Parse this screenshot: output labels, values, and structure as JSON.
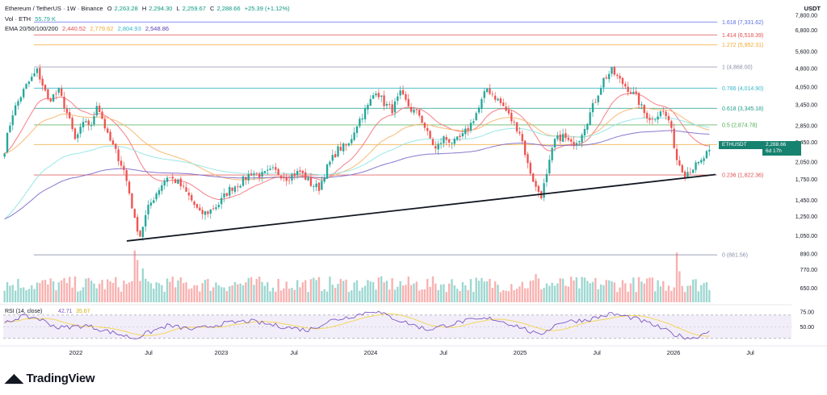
{
  "header": {
    "symbol": "Ethereum / TetherUS · 1W · Binance",
    "open_label": "O",
    "open": "2,263.28",
    "high_label": "H",
    "high": "2,294.30",
    "low_label": "L",
    "low": "2,259.67",
    "close_label": "C",
    "close": "2,288.66",
    "change": "+25.39 (+1.12%)",
    "vol_label": "Vol · ETH",
    "vol_value": "55.79 K",
    "ema_label": "EMA 20/50/100/200",
    "ema_values": [
      "2,440.52",
      "2,779.62",
      "2,804.93",
      "2,548.86"
    ]
  },
  "axis_unit": "USDT",
  "brand": "TradingView",
  "price_tag": {
    "symbol": "ETHUSDT",
    "price": "2,288.66",
    "countdown": "6d 17h"
  },
  "colors": {
    "up": "#26a69a",
    "down": "#ef5350",
    "ema20": "#f4707a",
    "ema50": "#f7b267",
    "ema100": "#8fe3e4",
    "ema200": "#7b68c9",
    "rsi": "#7e57c2",
    "rsi_ma": "#f3d65b",
    "trendline": "#131722"
  },
  "chart_data": {
    "type": "candlestick",
    "interval": "1W",
    "x_tick_labels": [
      "2022",
      "Jul",
      "2023",
      "Jul",
      "2024",
      "Jul",
      "2025",
      "Jul",
      "2026",
      "Jul"
    ],
    "x_ticks_frac": [
      0.09,
      0.18,
      0.27,
      0.36,
      0.455,
      0.545,
      0.64,
      0.735,
      0.83,
      0.925
    ],
    "y_scale": "log",
    "y_ticks": [
      650,
      770,
      890,
      1050,
      1250,
      1450,
      1750,
      2050,
      2450,
      2850,
      3450,
      4050,
      4800,
      5600,
      6800,
      7800
    ],
    "y_range": [
      560,
      8200
    ],
    "fib_levels": [
      {
        "label": "1.618",
        "value": 7331.62,
        "color": "#5b6ee1"
      },
      {
        "label": "1.414",
        "value": 6518.39,
        "color": "#e04e4e"
      },
      {
        "label": "1.272",
        "value": 5952.31,
        "color": "#f0a830"
      },
      {
        "label": "1",
        "value": 4868.0,
        "color": "#8a8fa8"
      },
      {
        "label": "0.786",
        "value": 4014.9,
        "color": "#35b7c9"
      },
      {
        "label": "0.618",
        "value": 3345.18,
        "color": "#1f9e8a"
      },
      {
        "label": "0.5",
        "value": 2874.78,
        "color": "#4caf50"
      },
      {
        "label": "0.382",
        "value": 2404.39,
        "color": "#f0a830"
      },
      {
        "label": "0.236",
        "value": 1822.36,
        "color": "#e04e4e"
      },
      {
        "label": "0",
        "value": 881.56,
        "color": "#8a8fa8"
      }
    ],
    "anchors": [
      [
        0,
        2300
      ],
      [
        3,
        3200
      ],
      [
        8,
        4100
      ],
      [
        12,
        4700
      ],
      [
        16,
        3600
      ],
      [
        20,
        3900
      ],
      [
        26,
        2500
      ],
      [
        30,
        3000
      ],
      [
        32,
        2800
      ],
      [
        34,
        3500
      ],
      [
        38,
        2600
      ],
      [
        44,
        1900
      ],
      [
        48,
        1200
      ],
      [
        50,
        1050
      ],
      [
        53,
        1350
      ],
      [
        56,
        1550
      ],
      [
        60,
        1800
      ],
      [
        64,
        1700
      ],
      [
        68,
        1500
      ],
      [
        72,
        1280
      ],
      [
        75,
        1300
      ],
      [
        79,
        1400
      ],
      [
        83,
        1600
      ],
      [
        87,
        1700
      ],
      [
        91,
        1860
      ],
      [
        95,
        1820
      ],
      [
        99,
        1900
      ],
      [
        104,
        1780
      ],
      [
        109,
        1880
      ],
      [
        113,
        1680
      ],
      [
        116,
        1620
      ],
      [
        119,
        1950
      ],
      [
        123,
        2300
      ],
      [
        127,
        2400
      ],
      [
        130,
        2900
      ],
      [
        134,
        3400
      ],
      [
        137,
        3950
      ],
      [
        140,
        3500
      ],
      [
        143,
        3300
      ],
      [
        146,
        3800
      ],
      [
        150,
        3300
      ],
      [
        153,
        3150
      ],
      [
        156,
        2650
      ],
      [
        159,
        2300
      ],
      [
        162,
        2550
      ],
      [
        166,
        2450
      ],
      [
        169,
        2600
      ],
      [
        172,
        2900
      ],
      [
        175,
        3350
      ],
      [
        178,
        4000
      ],
      [
        181,
        3700
      ],
      [
        184,
        3400
      ],
      [
        187,
        3000
      ],
      [
        190,
        2700
      ],
      [
        193,
        2000
      ],
      [
        196,
        1620
      ],
      [
        198,
        1520
      ],
      [
        200,
        1800
      ],
      [
        203,
        2500
      ],
      [
        206,
        2600
      ],
      [
        209,
        2400
      ],
      [
        212,
        2550
      ],
      [
        215,
        3000
      ],
      [
        218,
        3600
      ],
      [
        221,
        4350
      ],
      [
        224,
        4700
      ],
      [
        227,
        4300
      ],
      [
        230,
        4000
      ],
      [
        233,
        3700
      ],
      [
        236,
        3200
      ],
      [
        239,
        3000
      ],
      [
        242,
        3300
      ],
      [
        245,
        3000
      ],
      [
        248,
        2100
      ],
      [
        251,
        1850
      ],
      [
        254,
        1950
      ],
      [
        257,
        2050
      ],
      [
        260,
        2290
      ]
    ],
    "volume_scale": [
      0,
      100
    ],
    "volume_spikes": {
      "48": 92,
      "49": 75,
      "51": 60,
      "248": 88,
      "249": 55,
      "196": 50
    },
    "rsi": {
      "label": "RSI (14, close)",
      "value": "42.71",
      "ma_value": "35.67",
      "ticks": [
        75,
        50
      ],
      "bands": [
        70,
        30
      ],
      "anchors": [
        [
          0,
          55
        ],
        [
          6,
          68
        ],
        [
          12,
          65
        ],
        [
          20,
          48
        ],
        [
          30,
          52
        ],
        [
          40,
          40
        ],
        [
          48,
          30
        ],
        [
          52,
          38
        ],
        [
          60,
          52
        ],
        [
          70,
          45
        ],
        [
          80,
          55
        ],
        [
          90,
          60
        ],
        [
          100,
          52
        ],
        [
          112,
          44
        ],
        [
          120,
          60
        ],
        [
          130,
          70
        ],
        [
          136,
          78
        ],
        [
          145,
          62
        ],
        [
          156,
          45
        ],
        [
          170,
          60
        ],
        [
          180,
          64
        ],
        [
          190,
          50
        ],
        [
          197,
          35
        ],
        [
          205,
          58
        ],
        [
          215,
          62
        ],
        [
          224,
          72
        ],
        [
          232,
          65
        ],
        [
          240,
          52
        ],
        [
          248,
          35
        ],
        [
          254,
          30
        ],
        [
          260,
          42.71
        ]
      ]
    }
  }
}
